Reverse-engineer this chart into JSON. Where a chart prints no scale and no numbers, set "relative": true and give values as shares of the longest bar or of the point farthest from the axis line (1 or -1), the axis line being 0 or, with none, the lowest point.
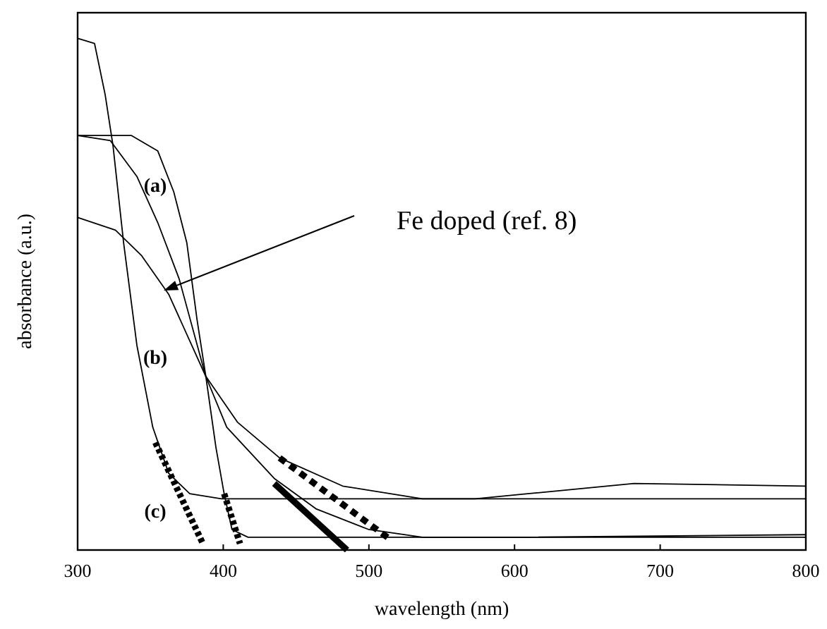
{
  "chart_data": {
    "type": "line",
    "relative": true,
    "xlabel": "wavelength (nm)",
    "ylabel": "absorbance (a.u.)",
    "xlim": [
      300,
      800
    ],
    "xticks": [
      300,
      400,
      500,
      600,
      700,
      800
    ],
    "grid": false,
    "marker": "none",
    "series": [
      {
        "color": "#000000",
        "line_style": "solid",
        "x": [
          300,
          311.6,
          318.9,
          324.3,
          331.6,
          340.7,
          351.6,
          362.5,
          377,
          398.8,
          800
        ],
        "values": [
          1.0,
          0.99,
          0.89,
          0.79,
          0.6,
          0.4,
          0.24,
          0.15,
          0.11,
          0.1,
          0.1
        ]
      },
      {
        "color": "#000000",
        "line_style": "solid",
        "x": [
          300,
          337,
          355,
          366,
          375,
          382,
          388,
          395,
          400.6,
          406,
          417,
          464,
          800
        ],
        "values": [
          0.81,
          0.81,
          0.78,
          0.7,
          0.6,
          0.45,
          0.34,
          0.2,
          0.11,
          0.04,
          0.025,
          0.025,
          0.025
        ]
      },
      {
        "color": "#000000",
        "line_style": "solid",
        "x": [
          300,
          322.5,
          340.7,
          355,
          369.7,
          387.9,
          402.4,
          435,
          464,
          500,
          536.7,
          609,
          800
        ],
        "values": [
          0.81,
          0.8,
          0.73,
          0.64,
          0.53,
          0.34,
          0.24,
          0.14,
          0.08,
          0.04,
          0.025,
          0.025,
          0.03
        ]
      },
      {
        "color": "#000000",
        "line_style": "solid",
        "x": [
          300,
          326,
          344,
          362.5,
          387.9,
          409.7,
          438.7,
          482,
          536.7,
          573,
          609,
          682,
          800
        ],
        "values": [
          0.65,
          0.625,
          0.575,
          0.5,
          0.34,
          0.25,
          0.18,
          0.125,
          0.1,
          0.1,
          0.11,
          0.13,
          0.125
        ]
      },
      {
        "type": "line",
        "color": "#000000",
        "line_style": "dashed",
        "x": [
          353.4,
          386
        ],
        "values": [
          0.21,
          0.0125
        ]
      },
      {
        "type": "line",
        "color": "#000000",
        "line_style": "dashed",
        "x": [
          400.6,
          411.5
        ],
        "values": [
          0.11,
          0.0125
        ]
      },
      {
        "type": "line",
        "color": "#000000",
        "line_style": "solid",
        "x": [
          435,
          485
        ],
        "values": [
          0.13,
          0.0
        ]
      },
      {
        "type": "line",
        "color": "#000000",
        "line_style": "dotted",
        "x": [
          438.7,
          515
        ],
        "values": [
          0.18,
          0.02
        ]
      }
    ],
    "annotations": [
      "(a)",
      "(b)",
      "(c)",
      "Fe doped (ref. 8)"
    ]
  }
}
